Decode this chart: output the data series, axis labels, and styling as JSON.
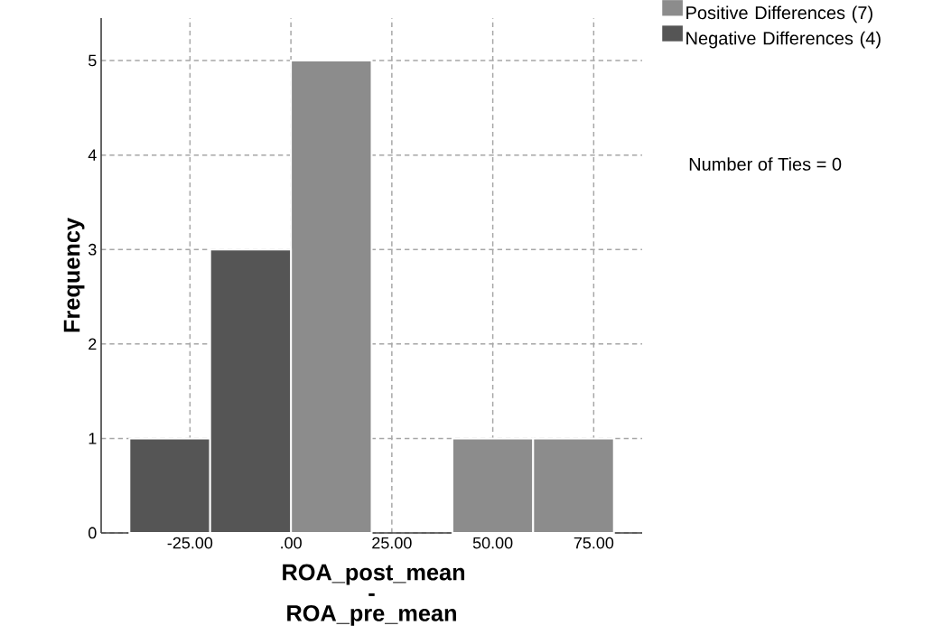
{
  "chart_data": {
    "type": "histogram",
    "xlabel": "ROA_post_mean - ROA_pre_mean",
    "ylabel": "Frequency",
    "bins": [
      -40,
      -20,
      0,
      20,
      40,
      60,
      80
    ],
    "series": [
      {
        "name": "Positive Differences (7)",
        "color": "#8c8c8c",
        "values": [
          null,
          null,
          5,
          null,
          1,
          1
        ]
      },
      {
        "name": "Negative Differences (4)",
        "color": "#555555",
        "values": [
          1,
          3,
          null,
          null,
          null,
          null
        ]
      }
    ],
    "xlim": [
      -47,
      87
    ],
    "ylim": [
      0,
      5.45
    ],
    "xticks": [
      {
        "value": -25,
        "label": "-25.00"
      },
      {
        "value": 0,
        "label": ".00"
      },
      {
        "value": 25,
        "label": "25.00"
      },
      {
        "value": 50,
        "label": "50.00"
      },
      {
        "value": 75,
        "label": "75.00"
      }
    ],
    "yticks": [
      0,
      1,
      2,
      3,
      4,
      5
    ],
    "grid": true,
    "legend": "top right",
    "annotations": [
      "Number of Ties = 0"
    ]
  }
}
